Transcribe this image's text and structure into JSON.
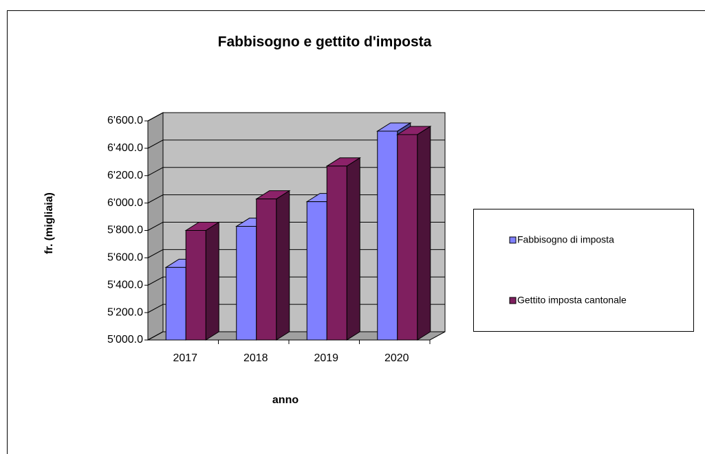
{
  "chart_data": {
    "type": "bar3d",
    "title": "Fabbisogno e gettito d'imposta",
    "x_label": "anno",
    "y_label": "fr. (migliaia)",
    "categories": [
      "2017",
      "2018",
      "2019",
      "2020"
    ],
    "series": [
      {
        "name": "Fabbisogno di imposta",
        "color": "#8080ff",
        "values": [
          5530,
          5830,
          6010,
          6525
        ]
      },
      {
        "name": "Gettito imposta cantonale",
        "color": "#7f1f5f",
        "values": [
          5800,
          6030,
          6270,
          6500
        ]
      }
    ],
    "ylim": [
      5000,
      6600
    ],
    "yticks": [
      {
        "value": 5000,
        "label": "5'000.0"
      },
      {
        "value": 5200,
        "label": "5'200.0"
      },
      {
        "value": 5400,
        "label": "5'400.0"
      },
      {
        "value": 5600,
        "label": "5'600.0"
      },
      {
        "value": 5800,
        "label": "5'800.0"
      },
      {
        "value": 6000,
        "label": "6'000.0"
      },
      {
        "value": 6200,
        "label": "6'200.0"
      },
      {
        "value": 6400,
        "label": "6'400.0"
      },
      {
        "value": 6600,
        "label": "6'600.0"
      }
    ],
    "grid": true,
    "legend": "right"
  }
}
